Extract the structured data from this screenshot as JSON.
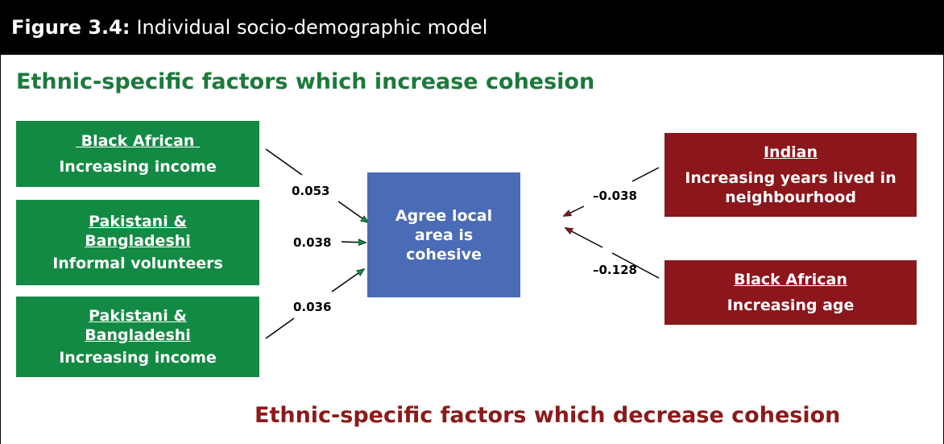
{
  "header": {
    "label": "Figure 3.4:",
    "text": "Individual socio-demographic model"
  },
  "heading_increase": "Ethnic-specific factors which increase cohesion",
  "heading_decrease": "Ethnic-specific factors which decrease cohesion",
  "center": "Agree local area is cohesive",
  "increase": [
    {
      "group": "Black African",
      "factor": "Increasing income",
      "coefficient": "0.053"
    },
    {
      "group": "Pakistani & Bangladeshi",
      "factor": "Informal volunteers",
      "coefficient": "0.038"
    },
    {
      "group": "Pakistani & Bangladeshi",
      "factor": "Increasing income",
      "coefficient": "0.036"
    }
  ],
  "decrease": [
    {
      "group": "Indian",
      "factor": "Increasing years lived in neighbourhood",
      "coefficient": "–0.038"
    },
    {
      "group": "Black African",
      "factor": "Increasing age",
      "coefficient": "–0.128"
    }
  ]
}
